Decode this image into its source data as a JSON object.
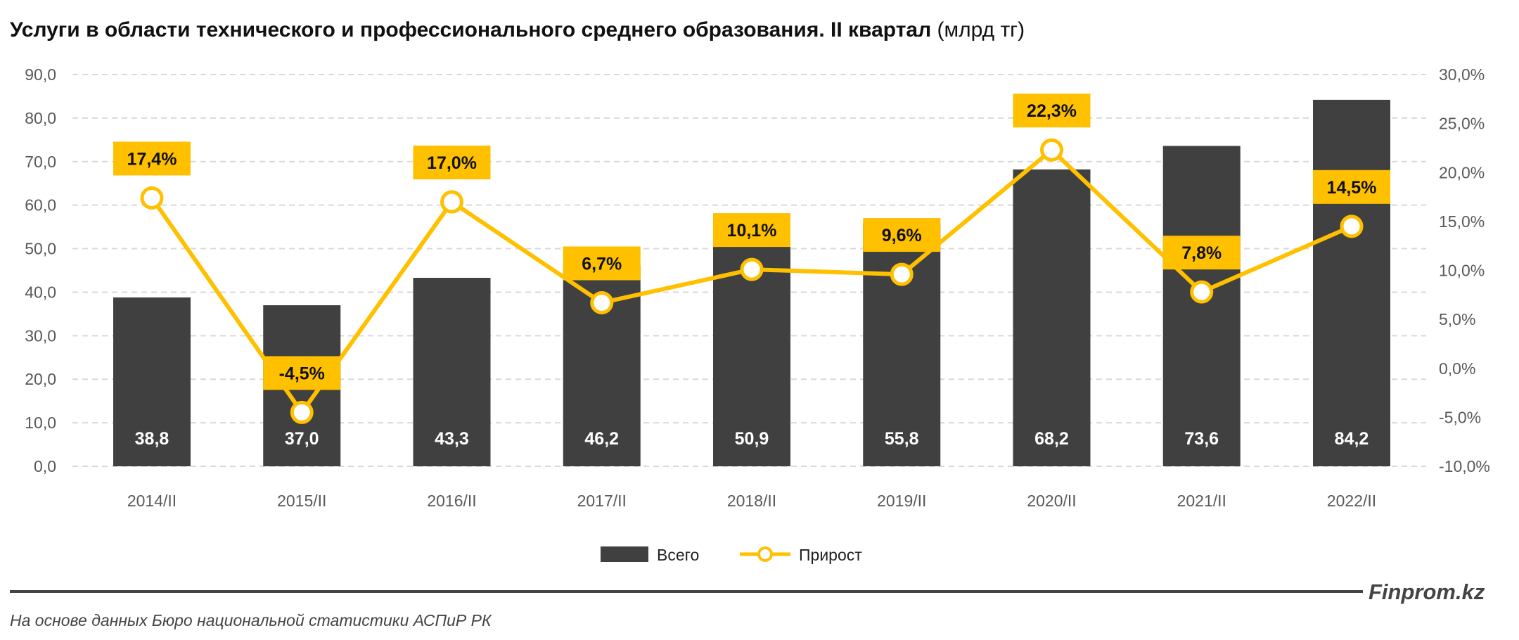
{
  "chart_data": {
    "type": "bar+line",
    "title": "Услуги в области технического и профессионального среднего образования. II квартал",
    "unit": "(млрд тг)",
    "categories": [
      "2014/II",
      "2015/II",
      "2016/II",
      "2017/II",
      "2018/II",
      "2019/II",
      "2020/II",
      "2021/II",
      "2022/II"
    ],
    "series": [
      {
        "name": "Всего",
        "type": "bar",
        "axis": "left",
        "color": "#404040",
        "values": [
          38.8,
          37.0,
          43.3,
          46.2,
          50.9,
          55.8,
          68.2,
          73.6,
          84.2
        ],
        "labels": [
          "38,8",
          "37,0",
          "43,3",
          "46,2",
          "50,9",
          "55,8",
          "68,2",
          "73,6",
          "84,2"
        ]
      },
      {
        "name": "Прирост",
        "type": "line",
        "axis": "right",
        "color": "#FFC000",
        "values": [
          17.4,
          -4.5,
          17.0,
          6.7,
          10.1,
          9.6,
          22.3,
          7.8,
          14.5
        ],
        "labels": [
          "17,4%",
          "-4,5%",
          "17,0%",
          "6,7%",
          "10,1%",
          "9,6%",
          "22,3%",
          "7,8%",
          "14,5%"
        ]
      }
    ],
    "left_axis": {
      "ylim": [
        0,
        90
      ],
      "ticks": [
        "0,0",
        "10,0",
        "20,0",
        "30,0",
        "40,0",
        "50,0",
        "60,0",
        "70,0",
        "80,0",
        "90,0"
      ]
    },
    "right_axis": {
      "ylim": [
        -10,
        30
      ],
      "ticks": [
        "-10,0%",
        "-5,0%",
        "0,0%",
        "5,0%",
        "10,0%",
        "15,0%",
        "20,0%",
        "25,0%",
        "30,0%"
      ]
    },
    "grid": true,
    "legend": "bottom"
  },
  "brand": "Finprom.kz",
  "footer": "На основе данных Бюро национальной статистики АСПиР РК"
}
